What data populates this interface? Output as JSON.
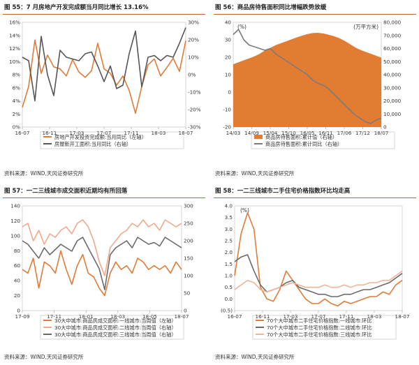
{
  "panels": [
    {
      "id": "p55",
      "title": "图 55：7 月房地产开发完成额当月同比增长 13.16%",
      "source": "资料来源：WIND,天风证券研究所",
      "chart_data": {
        "type": "line",
        "x_ticks": [
          "16-07",
          "16-11",
          "17-03",
          "17-07",
          "17-11",
          "18-03",
          "18-07"
        ],
        "left_axis": {
          "ylim": [
            0,
            16
          ],
          "ticks": [
            "0%",
            "2%",
            "4%",
            "6%",
            "8%",
            "10%",
            "12%",
            "14%",
            "16%"
          ]
        },
        "right_axis": {
          "ylim": [
            -30,
            30
          ],
          "ticks": [
            "-30%",
            "-20%",
            "-10%",
            "0%",
            "10%",
            "20%",
            "30%"
          ]
        },
        "series": [
          {
            "name": "房地产开发投资完成额:当月同比（左轴）",
            "axis": "left",
            "color": "#e07b39",
            "values": [
              3.0,
              6.2,
              13.3,
              8.2,
              11.0,
              9.2,
              8.9,
              7.8,
              10.3,
              8.4,
              7.6,
              8.6,
              12.8,
              8.9,
              8.2,
              6.4,
              7.8,
              5.6,
              2.1,
              6.2,
              9.5,
              10.4,
              7.8,
              9.1,
              10.5,
              8.5,
              13.2
            ]
          },
          {
            "name": "房屋新开工面积:当月同比（右轴）",
            "axis": "right",
            "color": "#555555",
            "values": [
              10,
              8,
              -15,
              22,
              0,
              -12,
              14,
              10,
              9,
              8,
              12,
              13,
              5,
              -4,
              5,
              -8,
              -6,
              12,
              25,
              -7,
              10,
              11,
              8,
              11,
              10,
              18,
              27
            ]
          }
        ]
      }
    },
    {
      "id": "p56",
      "title": "图 56：商品房待售面积同比增幅跌势放缓",
      "source": "资料来源：WIND,天风证券研究所",
      "chart_data": {
        "type": "area",
        "left_label": "(%)",
        "right_label": "(万平方米)",
        "x_ticks": [
          "14/03",
          "14/09",
          "15/04",
          "15/10",
          "16/05",
          "16/11",
          "17/06",
          "17/12",
          "18/07"
        ],
        "left_axis": {
          "ylim": [
            -20,
            40
          ],
          "ticks": [
            "-20",
            "-10",
            "0",
            "10",
            "20",
            "30",
            "40"
          ]
        },
        "right_axis": {
          "ylim": [
            0,
            80000
          ],
          "ticks": [
            "0",
            "10,000",
            "20,000",
            "30,000",
            "40,000",
            "50,000",
            "60,000",
            "70,000",
            "80,000"
          ]
        },
        "series": [
          {
            "name": "商品房待售面积:累计值（右轴）",
            "axis": "right",
            "color": "#e37c33",
            "kind": "area",
            "values": [
              48000,
              49500,
              51000,
              52500,
              54000,
              56000,
              58500,
              60500,
              62500,
              64000,
              65500,
              67000,
              68500,
              69800,
              71000,
              71800,
              72000,
              71500,
              70500,
              69500,
              68000,
              66000,
              63500,
              61000,
              59000,
              57500,
              56000,
              54500,
              53000
            ]
          },
          {
            "name": "商品房待售面积:累计同比（右轴）",
            "axis": "left",
            "color": "#7b7b7b",
            "kind": "line",
            "values": [
              33,
              36,
              30,
              27,
              26,
              25,
              24,
              25,
              22,
              20,
              18,
              16,
              14,
              12,
              10,
              7,
              5,
              4,
              2,
              -1,
              -4,
              -7,
              -10,
              -13,
              -15,
              -17,
              -18,
              -16,
              -15
            ]
          }
        ]
      }
    },
    {
      "id": "p57",
      "title": "图 57：一二三线城市成交面积近期均有所回落",
      "source": "资料来源：WIND,天风证券研究所",
      "chart_data": {
        "type": "line",
        "x_ticks": [
          "17-09",
          "17-11",
          "18-01",
          "18-03",
          "18-05",
          "18-07"
        ],
        "left_axis": {
          "ylim": [
            0,
            140
          ],
          "ticks": [
            "0",
            "20",
            "40",
            "60",
            "80",
            "100",
            "120",
            "140"
          ]
        },
        "right_axis": {
          "ylim": [
            0,
            300
          ],
          "ticks": [
            "0",
            "50",
            "100",
            "150",
            "200",
            "250",
            "300"
          ]
        },
        "series": [
          {
            "name": "30大中城市:商品房成交面积:一线城市:当周值（左轴）",
            "axis": "left",
            "color": "#e07b39",
            "values": [
              55,
              50,
              70,
              30,
              65,
              60,
              50,
              80,
              55,
              35,
              60,
              75,
              50,
              45,
              30,
              20,
              50,
              65,
              55,
              60,
              50,
              70,
              65,
              55,
              60,
              55,
              60,
              50,
              65,
              55
            ]
          },
          {
            "name": "30大中城市:商品房成交面积:二线城市:当周值（右轴）",
            "axis": "right",
            "color": "#f0a98a",
            "values": [
              240,
              250,
              200,
              230,
              190,
              220,
              210,
              230,
              240,
              220,
              250,
              260,
              240,
              200,
              140,
              100,
              180,
              200,
              220,
              230,
              250,
              240,
              260,
              240,
              250,
              230,
              260,
              250,
              240,
              250
            ]
          },
          {
            "name": "30大中城市:商品房成交面积:三线城市:当周值（右轴）",
            "axis": "right",
            "color": "#6a6a6a",
            "values": [
              200,
              190,
              170,
              150,
              180,
              160,
              175,
              190,
              180,
              170,
              200,
              210,
              180,
              150,
              120,
              60,
              160,
              180,
              190,
              200,
              180,
              210,
              200,
              190,
              195,
              185,
              210,
              200,
              190,
              180
            ]
          }
        ]
      }
    },
    {
      "id": "p58",
      "title": "图 58：一二三线城市二手住宅价格指数环比均走高",
      "source": "资料来源：WIND,天风证券研究所",
      "chart_data": {
        "type": "line",
        "unit_label": "(%)",
        "x_ticks": [
          "16-07",
          "16-11",
          "17-03",
          "17-07",
          "17-11",
          "18-03",
          "18-07"
        ],
        "y_axis": {
          "ylim": [
            -0.5,
            4.0
          ],
          "ticks": [
            "(0.5)",
            "0.0",
            "0.5",
            "1.0",
            "1.5",
            "2.0",
            "2.5",
            "3.0",
            "3.5",
            "4.0"
          ]
        },
        "series": [
          {
            "name": "70个大中城市二手住宅价格指数:一线城市:环比",
            "axis": "left",
            "color": "#e07b39",
            "values": [
              1.0,
              2.8,
              3.7,
              3.0,
              0.5,
              0.0,
              -0.1,
              0.4,
              1.2,
              0.8,
              0.4,
              0.0,
              -0.2,
              -0.2,
              0.0,
              -0.2,
              -0.3,
              -0.1,
              -0.2,
              -0.1,
              0.0,
              0.1,
              0.1,
              0.3,
              0.2,
              0.6,
              0.8
            ]
          },
          {
            "name": "70个大中城市二手住宅价格指数:二线城市:环比",
            "axis": "left",
            "color": "#6a6a6a",
            "values": [
              1.6,
              1.8,
              1.9,
              1.2,
              0.6,
              0.3,
              0.4,
              0.5,
              0.7,
              0.8,
              0.5,
              0.4,
              0.3,
              0.2,
              0.2,
              0.1,
              0.1,
              0.2,
              0.2,
              0.3,
              0.4,
              0.4,
              0.5,
              0.6,
              0.7,
              0.9,
              1.1
            ]
          },
          {
            "name": "70个大中城市二手住宅价格指数:三线城市:环比",
            "axis": "left",
            "color": "#f0b49a",
            "values": [
              0.4,
              0.6,
              0.8,
              0.7,
              0.4,
              0.3,
              0.4,
              0.5,
              0.6,
              0.7,
              0.6,
              0.5,
              0.5,
              0.5,
              0.6,
              0.5,
              0.5,
              0.6,
              0.5,
              0.6,
              0.6,
              0.7,
              0.7,
              0.8,
              0.8,
              1.0,
              1.2
            ]
          }
        ]
      }
    }
  ]
}
